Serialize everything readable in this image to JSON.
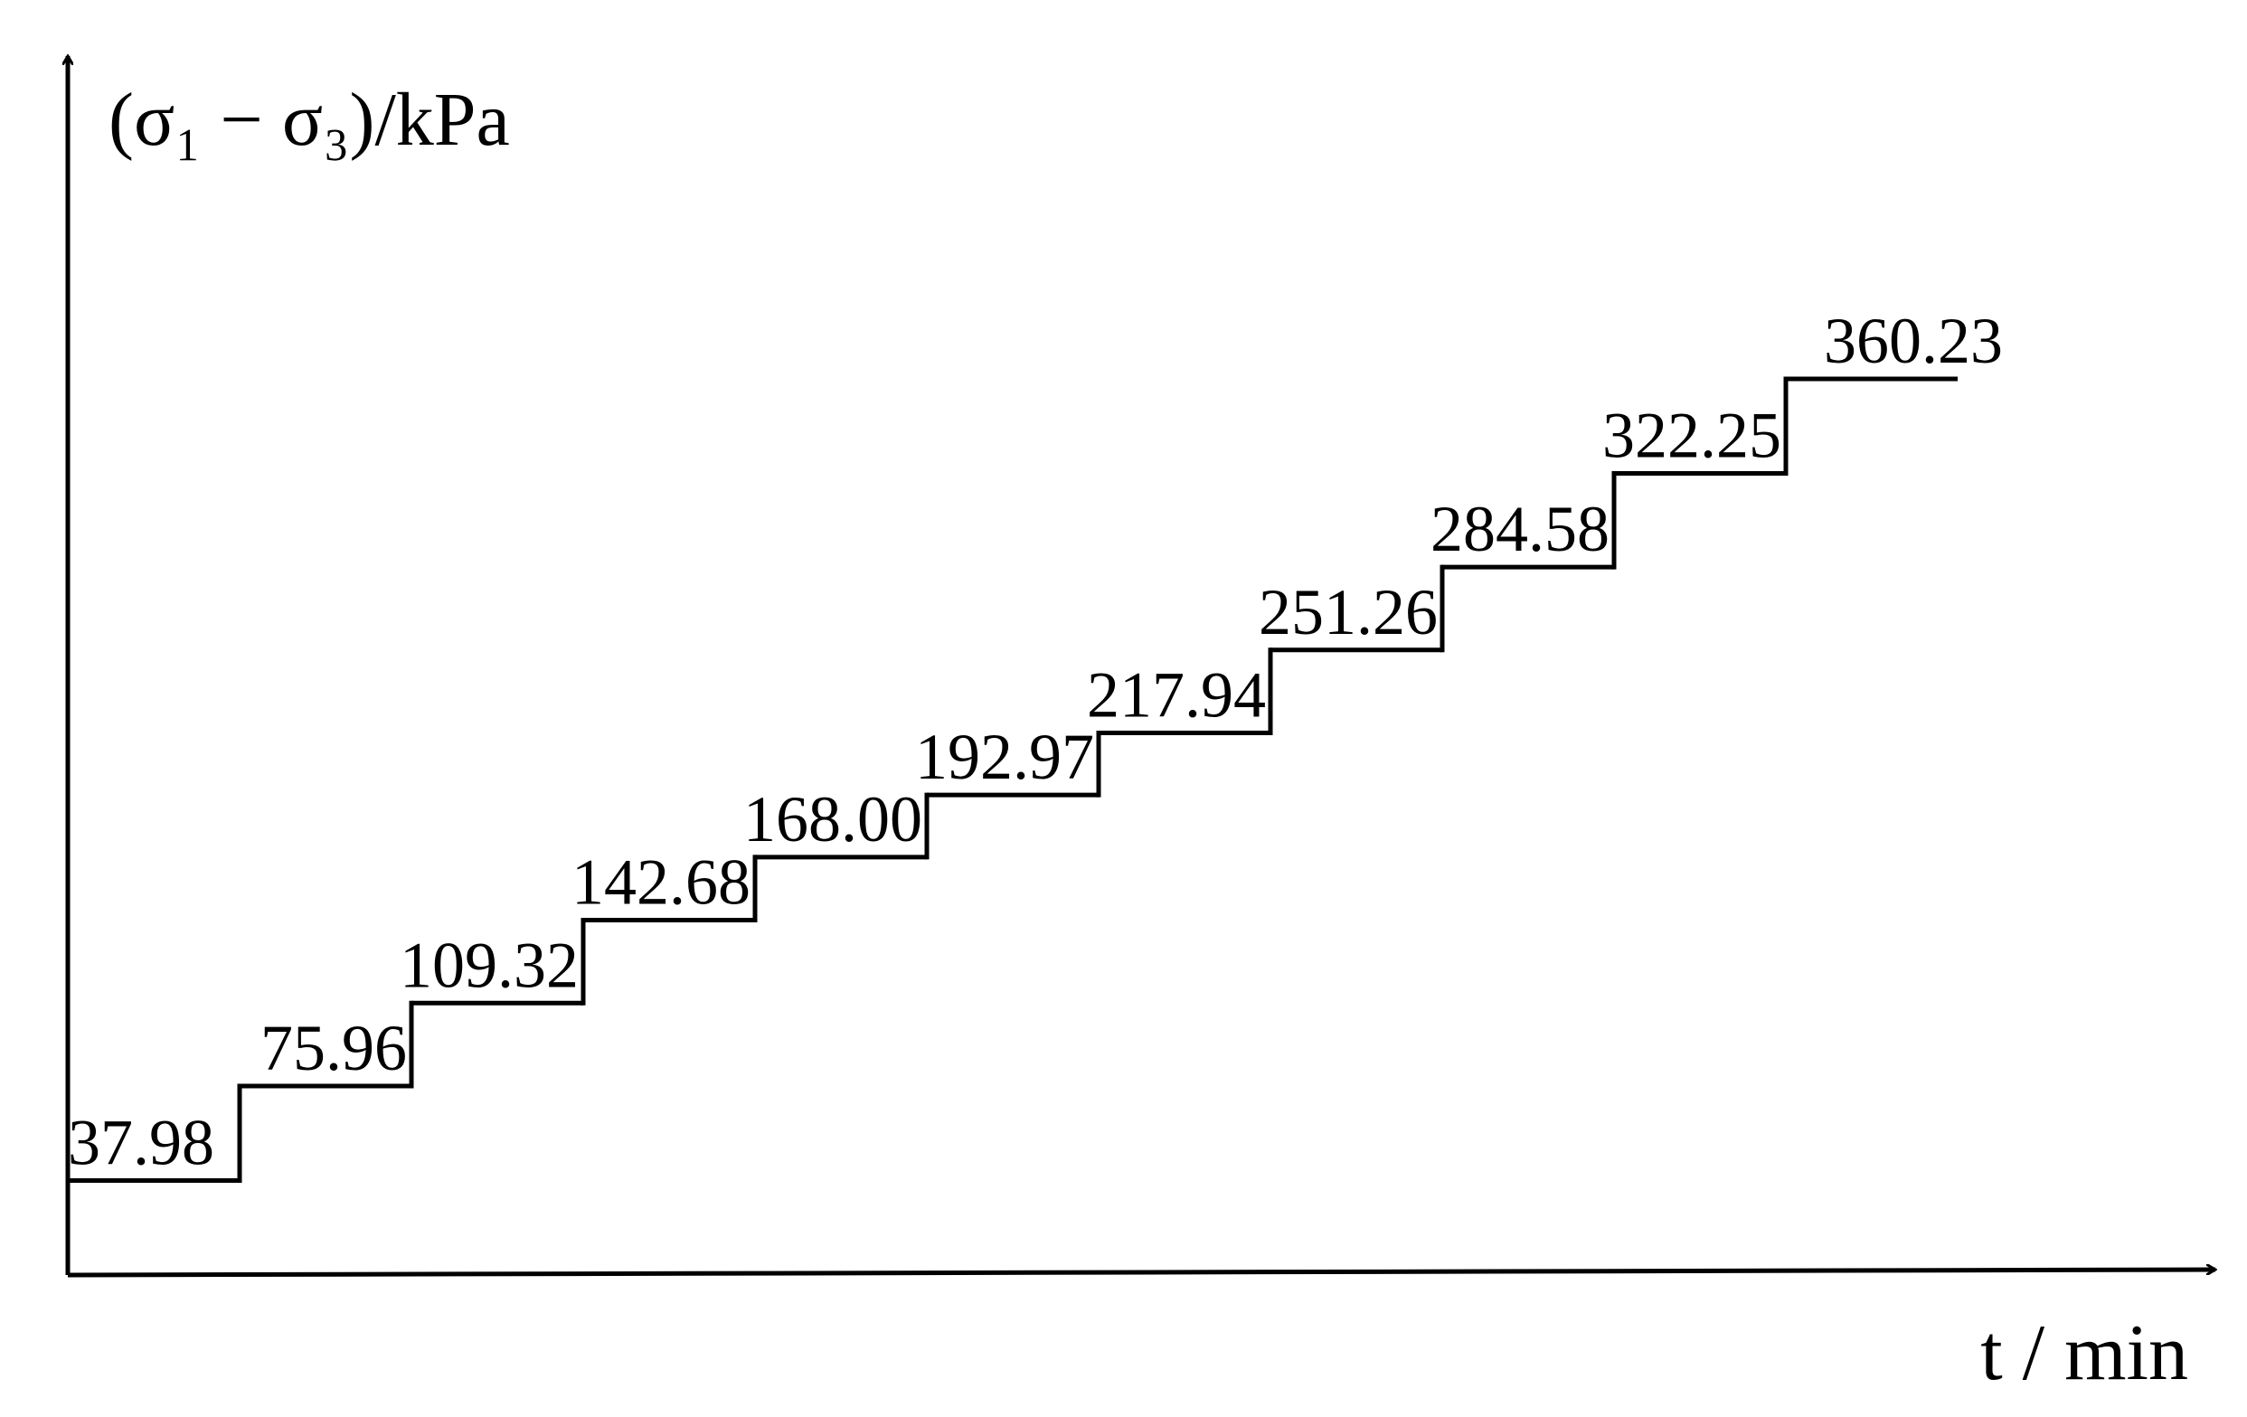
{
  "chart_data": {
    "type": "step",
    "y_label": "(σ₁ − σ₃)/kPa",
    "x_label": "t / min",
    "values": [
      37.98,
      75.96,
      109.32,
      142.68,
      168.0,
      192.97,
      217.94,
      251.26,
      284.58,
      322.25,
      360.23
    ],
    "value_labels": [
      "37.98",
      "75.96",
      "109.32",
      "142.68",
      "168.00",
      "192.97",
      "217.94",
      "251.26",
      "284.58",
      "322.25",
      "360.23"
    ],
    "ylim": [
      0,
      490
    ],
    "color": "#000000"
  }
}
